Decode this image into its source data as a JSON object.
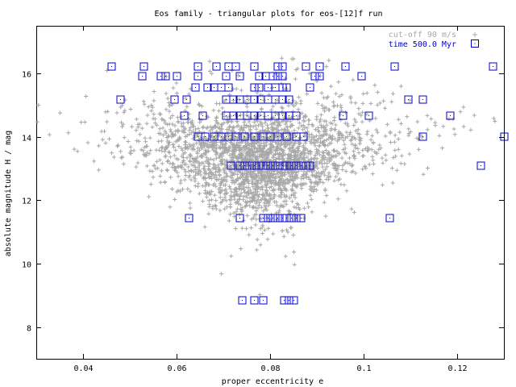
{
  "chart_data": {
    "type": "scatter",
    "title": "Eos family - triangular plots for eos-[12]f run",
    "xlabel": "proper eccentricity e",
    "ylabel": "absolute magnitude H / mag",
    "xlim": [
      0.03,
      0.13
    ],
    "ylim": [
      7.0,
      17.5
    ],
    "x_ticks": [
      0.04,
      0.06,
      0.08,
      0.1,
      0.12
    ],
    "x_tick_labels": [
      "0.04",
      "0.06",
      "0.08",
      "0.1",
      "0.12"
    ],
    "y_ticks": [
      8,
      10,
      12,
      14,
      16
    ],
    "y_tick_labels": [
      "8",
      "10",
      "12",
      "14",
      "16"
    ],
    "grid": false,
    "legend_position": "top-right",
    "series": [
      {
        "name": "cut-off 90 m/s",
        "marker": "plus",
        "color": "#a8a8a8",
        "distribution": {
          "points_shown": 2600,
          "center_e": 0.078,
          "spread_e": 0.013,
          "range_e": [
            0.03,
            0.13
          ],
          "center_H": 13.4,
          "spread_H": 0.8,
          "range_H": [
            7.2,
            16.5
          ]
        }
      },
      {
        "name": "time 500.0 Myr",
        "marker": "square-dot",
        "color": "#0000cc",
        "points": [
          [
            0.046,
            16.22
          ],
          [
            0.053,
            16.22
          ],
          [
            0.0645,
            16.22
          ],
          [
            0.0685,
            16.22
          ],
          [
            0.071,
            16.22
          ],
          [
            0.0725,
            16.22
          ],
          [
            0.0765,
            16.22
          ],
          [
            0.0815,
            16.22
          ],
          [
            0.0825,
            16.22
          ],
          [
            0.0875,
            16.22
          ],
          [
            0.0905,
            16.22
          ],
          [
            0.096,
            16.22
          ],
          [
            0.1065,
            16.22
          ],
          [
            0.1275,
            16.22
          ],
          [
            0.0525,
            15.92
          ],
          [
            0.0565,
            15.92
          ],
          [
            0.0575,
            15.92
          ],
          [
            0.06,
            15.92
          ],
          [
            0.0645,
            15.92
          ],
          [
            0.0705,
            15.92
          ],
          [
            0.0735,
            15.92
          ],
          [
            0.0775,
            15.92
          ],
          [
            0.079,
            15.92
          ],
          [
            0.0805,
            15.92
          ],
          [
            0.0815,
            15.92
          ],
          [
            0.0825,
            15.92
          ],
          [
            0.0895,
            15.92
          ],
          [
            0.0905,
            15.92
          ],
          [
            0.0995,
            15.92
          ],
          [
            0.064,
            15.58
          ],
          [
            0.0665,
            15.58
          ],
          [
            0.068,
            15.58
          ],
          [
            0.0695,
            15.58
          ],
          [
            0.071,
            15.58
          ],
          [
            0.0765,
            15.58
          ],
          [
            0.0775,
            15.58
          ],
          [
            0.0795,
            15.58
          ],
          [
            0.081,
            15.58
          ],
          [
            0.0825,
            15.58
          ],
          [
            0.0835,
            15.58
          ],
          [
            0.0885,
            15.58
          ],
          [
            0.048,
            15.18
          ],
          [
            0.0595,
            15.18
          ],
          [
            0.062,
            15.18
          ],
          [
            0.0705,
            15.18
          ],
          [
            0.072,
            15.18
          ],
          [
            0.0735,
            15.18
          ],
          [
            0.075,
            15.18
          ],
          [
            0.0765,
            15.18
          ],
          [
            0.078,
            15.18
          ],
          [
            0.0795,
            15.18
          ],
          [
            0.081,
            15.18
          ],
          [
            0.0825,
            15.18
          ],
          [
            0.084,
            15.18
          ],
          [
            0.1095,
            15.18
          ],
          [
            0.1125,
            15.18
          ],
          [
            0.0615,
            14.68
          ],
          [
            0.0655,
            14.68
          ],
          [
            0.0705,
            14.68
          ],
          [
            0.072,
            14.68
          ],
          [
            0.0735,
            14.68
          ],
          [
            0.075,
            14.68
          ],
          [
            0.0765,
            14.68
          ],
          [
            0.078,
            14.68
          ],
          [
            0.0795,
            14.68
          ],
          [
            0.081,
            14.68
          ],
          [
            0.0825,
            14.68
          ],
          [
            0.084,
            14.68
          ],
          [
            0.0855,
            14.68
          ],
          [
            0.0955,
            14.68
          ],
          [
            0.101,
            14.68
          ],
          [
            0.1185,
            14.68
          ],
          [
            0.0645,
            14.02
          ],
          [
            0.066,
            14.02
          ],
          [
            0.068,
            14.02
          ],
          [
            0.0695,
            14.02
          ],
          [
            0.071,
            14.02
          ],
          [
            0.0725,
            14.02
          ],
          [
            0.0745,
            14.02
          ],
          [
            0.0765,
            14.02
          ],
          [
            0.0785,
            14.02
          ],
          [
            0.08,
            14.02
          ],
          [
            0.0815,
            14.02
          ],
          [
            0.0835,
            14.02
          ],
          [
            0.0855,
            14.02
          ],
          [
            0.087,
            14.02
          ],
          [
            0.1125,
            14.02
          ],
          [
            0.13,
            14.02
          ],
          [
            0.0715,
            13.1
          ],
          [
            0.0735,
            13.1
          ],
          [
            0.0745,
            13.1
          ],
          [
            0.0755,
            13.1
          ],
          [
            0.0765,
            13.1
          ],
          [
            0.0775,
            13.1
          ],
          [
            0.0785,
            13.1
          ],
          [
            0.0795,
            13.1
          ],
          [
            0.0805,
            13.1
          ],
          [
            0.0815,
            13.1
          ],
          [
            0.0825,
            13.1
          ],
          [
            0.0835,
            13.1
          ],
          [
            0.0845,
            13.1
          ],
          [
            0.0855,
            13.1
          ],
          [
            0.0865,
            13.1
          ],
          [
            0.0875,
            13.1
          ],
          [
            0.0885,
            13.1
          ],
          [
            0.125,
            13.1
          ],
          [
            0.0625,
            11.45
          ],
          [
            0.0735,
            11.45
          ],
          [
            0.0785,
            11.45
          ],
          [
            0.0795,
            11.45
          ],
          [
            0.0805,
            11.45
          ],
          [
            0.0815,
            11.45
          ],
          [
            0.0825,
            11.45
          ],
          [
            0.0835,
            11.45
          ],
          [
            0.0845,
            11.45
          ],
          [
            0.0855,
            11.45
          ],
          [
            0.0865,
            11.45
          ],
          [
            0.1055,
            11.45
          ],
          [
            0.074,
            8.85
          ],
          [
            0.0765,
            8.85
          ],
          [
            0.0785,
            8.85
          ],
          [
            0.083,
            8.85
          ],
          [
            0.084,
            8.85
          ],
          [
            0.085,
            8.85
          ]
        ]
      }
    ]
  }
}
